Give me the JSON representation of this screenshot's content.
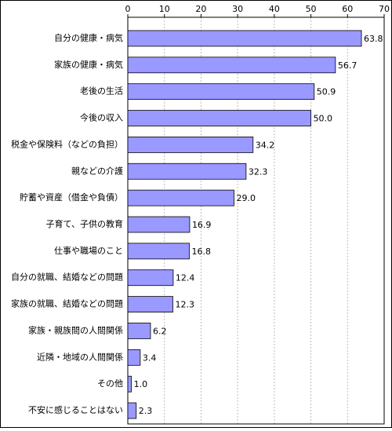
{
  "chart_data": {
    "type": "bar",
    "orientation": "horizontal",
    "categories": [
      "自分の健康・病気",
      "家族の健康・病気",
      "老後の生活",
      "今後の収入",
      "税金や保険料（などの負担）",
      "親などの介護",
      "貯蓄や資産（借金や負債）",
      "子育て、子供の教育",
      "仕事や職場のこと",
      "自分の就職、結婚などの問題",
      "家族の就職、結婚などの問題",
      "家族・親族間の人間関係",
      "近隣・地域の人間関係",
      "その他",
      "不安に感じることはない"
    ],
    "values": [
      63.8,
      56.7,
      50.9,
      50.0,
      34.2,
      32.3,
      29.0,
      16.9,
      16.8,
      12.4,
      12.3,
      6.2,
      3.4,
      1.0,
      2.3
    ],
    "value_labels": [
      "63.8",
      "56.7",
      "50.9",
      "50.0",
      "34.2",
      "32.3",
      "29.0",
      "16.9",
      "16.8",
      "12.4",
      "12.3",
      "6.2",
      "3.4",
      "1.0",
      "2.3"
    ],
    "color": "#9999ff",
    "xlim": [
      0,
      70
    ],
    "xticks": [
      0,
      10,
      20,
      30,
      40,
      50,
      60,
      70
    ],
    "grid": true
  }
}
